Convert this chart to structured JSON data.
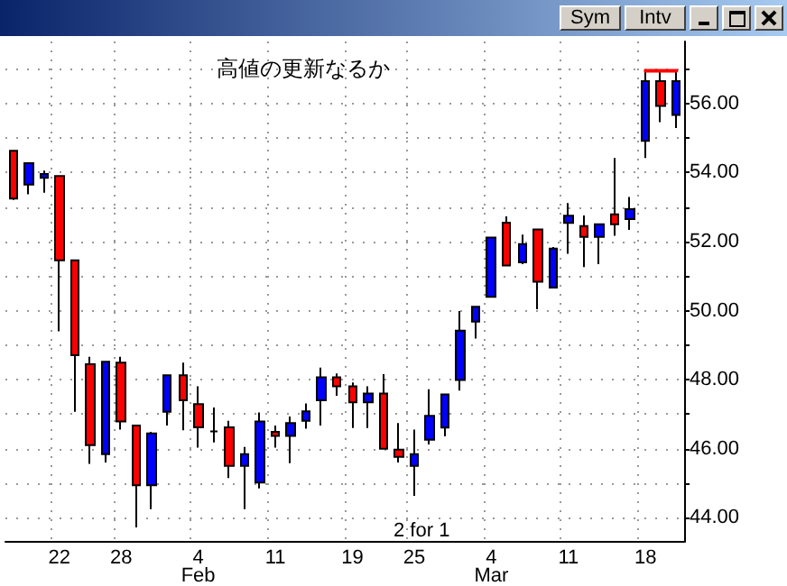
{
  "chart_data": {
    "type": "candlestick",
    "categories": [
      null,
      null,
      null,
      "22",
      null,
      null,
      null,
      "28",
      null,
      null,
      null,
      null,
      "4\nFeb",
      null,
      null,
      null,
      null,
      "11",
      null,
      null,
      null,
      null,
      "19",
      null,
      null,
      null,
      "25",
      null,
      null,
      null,
      null,
      "4\nMar",
      null,
      null,
      null,
      null,
      "11",
      null,
      null,
      null,
      null,
      "18",
      null,
      null
    ],
    "ohlc": [
      [
        54.63,
        54.63,
        53.21,
        53.25
      ],
      [
        53.65,
        54.27,
        53.37,
        54.27
      ],
      [
        53.85,
        54.06,
        53.42,
        53.96
      ],
      [
        53.9,
        53.9,
        49.4,
        51.46
      ],
      [
        51.46,
        51.46,
        47.07,
        48.71
      ],
      [
        48.45,
        48.66,
        45.56,
        46.1
      ],
      [
        45.84,
        48.52,
        45.6,
        48.52
      ],
      [
        48.49,
        48.66,
        46.55,
        46.79
      ],
      [
        46.67,
        46.67,
        43.72,
        44.94
      ],
      [
        44.94,
        46.49,
        44.25,
        46.44
      ],
      [
        47.07,
        48.13,
        46.67,
        48.13
      ],
      [
        48.13,
        48.49,
        46.53,
        47.4
      ],
      [
        47.29,
        47.81,
        46.03,
        46.62
      ],
      [
        46.5,
        47.19,
        46.18,
        46.5
      ],
      [
        46.62,
        46.81,
        45.15,
        45.5
      ],
      [
        45.5,
        46.05,
        44.25,
        45.84
      ],
      [
        45.02,
        47.05,
        44.85,
        46.79
      ],
      [
        46.49,
        46.67,
        46.03,
        46.37
      ],
      [
        46.37,
        46.93,
        45.58,
        46.74
      ],
      [
        46.81,
        47.31,
        46.58,
        47.08
      ],
      [
        47.4,
        48.35,
        46.67,
        48.07
      ],
      [
        48.07,
        48.18,
        47.53,
        47.81
      ],
      [
        47.81,
        47.92,
        46.6,
        47.34
      ],
      [
        47.34,
        47.81,
        46.6,
        47.6
      ],
      [
        47.6,
        48.16,
        45.97,
        46.0
      ],
      [
        45.97,
        46.74,
        45.6,
        45.76
      ],
      [
        45.5,
        46.55,
        44.63,
        45.84
      ],
      [
        46.26,
        47.72,
        46.12,
        46.95
      ],
      [
        46.61,
        47.57,
        46.36,
        47.57
      ],
      [
        47.99,
        49.99,
        47.68,
        49.42
      ],
      [
        49.68,
        50.11,
        49.19,
        50.11
      ],
      [
        50.4,
        52.12,
        50.4,
        52.12
      ],
      [
        52.55,
        52.73,
        51.31,
        51.31
      ],
      [
        51.4,
        52.2,
        51.35,
        51.93
      ],
      [
        52.35,
        52.35,
        50.04,
        50.84
      ],
      [
        50.67,
        51.84,
        50.67,
        51.8
      ],
      [
        52.54,
        53.12,
        51.65,
        52.75
      ],
      [
        52.45,
        52.76,
        51.26,
        52.14
      ],
      [
        52.14,
        52.5,
        51.35,
        52.5
      ],
      [
        52.79,
        54.42,
        52.17,
        52.5
      ],
      [
        52.65,
        53.29,
        52.34,
        52.94
      ],
      [
        54.92,
        56.91,
        54.42,
        56.65
      ],
      [
        56.65,
        56.91,
        55.46,
        55.93
      ],
      [
        55.67,
        56.91,
        55.29,
        56.65
      ]
    ],
    "colors": [
      "#ff0000",
      "#0000ff",
      "#0000ff",
      "#ff0000",
      "#ff0000",
      "#ff0000",
      "#0000ff",
      "#ff0000",
      "#ff0000",
      "#0000ff",
      "#0000ff",
      "#ff0000",
      "#ff0000",
      "#000000",
      "#ff0000",
      "#0000ff",
      "#0000ff",
      "#ff0000",
      "#0000ff",
      "#0000ff",
      "#0000ff",
      "#ff0000",
      "#ff0000",
      "#0000ff",
      "#ff0000",
      "#ff0000",
      "#0000ff",
      "#0000ff",
      "#0000ff",
      "#0000ff",
      "#0000ff",
      "#0000ff",
      "#ff0000",
      "#0000ff",
      "#ff0000",
      "#0000ff",
      "#0000ff",
      "#ff0000",
      "#0000ff",
      "#ff0000",
      "#0000ff",
      "#0000ff",
      "#ff0000",
      "#0000ff"
    ],
    "series": [
      {
        "type": "line",
        "color": "#ff0000",
        "values": [
          null,
          null,
          null,
          null,
          null,
          null,
          null,
          null,
          null,
          null,
          null,
          null,
          null,
          null,
          null,
          null,
          null,
          null,
          null,
          null,
          null,
          null,
          null,
          null,
          null,
          null,
          null,
          null,
          null,
          null,
          null,
          null,
          null,
          null,
          null,
          null,
          null,
          null,
          null,
          null,
          null,
          56.95,
          56.95,
          56.95
        ]
      }
    ],
    "ylim": [
      43.3,
      57.8
    ],
    "yticks": [
      {
        "value": 44,
        "label": "44.00"
      },
      {
        "value": 45,
        "label": null
      },
      {
        "value": 46,
        "label": "46.00"
      },
      {
        "value": 47,
        "label": null
      },
      {
        "value": 48,
        "label": "48.00"
      },
      {
        "value": 49,
        "label": null
      },
      {
        "value": 50,
        "label": "50.00"
      },
      {
        "value": 51,
        "label": null
      },
      {
        "value": 52,
        "label": "52.00"
      },
      {
        "value": 53,
        "label": null
      },
      {
        "value": 54,
        "label": "54.00"
      },
      {
        "value": 55,
        "label": null
      },
      {
        "value": 56,
        "label": "56.00"
      },
      {
        "value": 57,
        "label": null
      }
    ],
    "annotations": [
      "高値の更新なるか",
      "2 for 1",
      "Sym",
      "Intv"
    ],
    "grid": true,
    "marker": "none",
    "line_style": "solid"
  }
}
